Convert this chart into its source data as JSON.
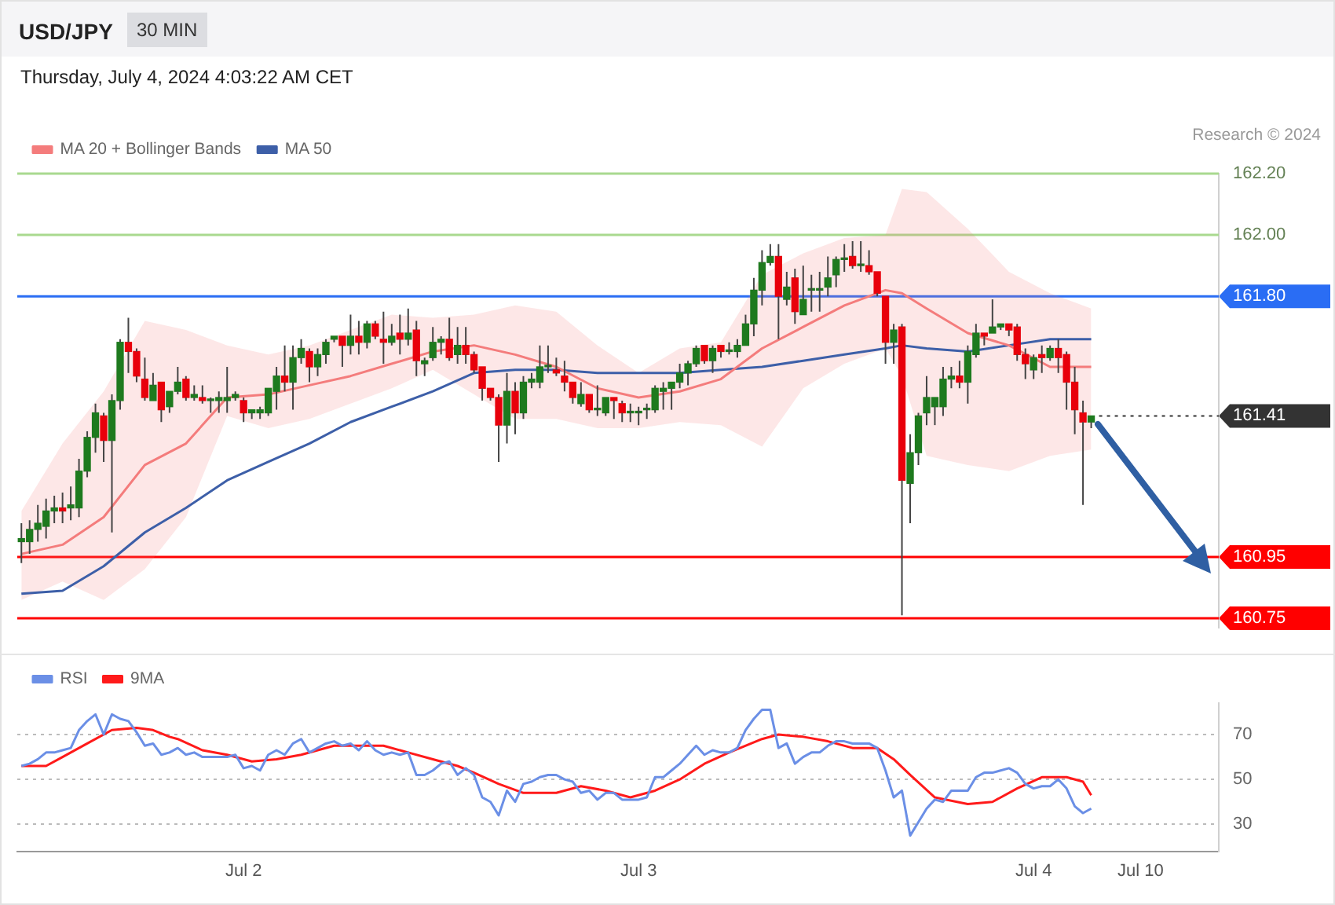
{
  "chart_data": [
    {
      "type": "candlestick",
      "title": "USD/JPY",
      "subtitle": "Thursday, July 4, 2024 4:03:22 AM CET",
      "annotations": [
        "30 MIN",
        "Research © 2024"
      ],
      "ohlc": [
        [
          161.0,
          161.06,
          160.93,
          161.01
        ],
        [
          161.0,
          161.07,
          160.96,
          161.04
        ],
        [
          161.04,
          161.12,
          161.0,
          161.06
        ],
        [
          161.05,
          161.14,
          161.01,
          161.1
        ],
        [
          161.1,
          161.15,
          161.06,
          161.11
        ],
        [
          161.11,
          161.16,
          161.06,
          161.1
        ],
        [
          161.11,
          161.18,
          161.07,
          161.12
        ],
        [
          161.11,
          161.27,
          161.08,
          161.23
        ],
        [
          161.23,
          161.36,
          161.21,
          161.34
        ],
        [
          161.34,
          161.45,
          161.29,
          161.42
        ],
        [
          161.41,
          161.42,
          161.26,
          161.33
        ],
        [
          161.33,
          161.48,
          161.03,
          161.46
        ],
        [
          161.46,
          161.66,
          161.43,
          161.65
        ],
        [
          161.65,
          161.73,
          161.55,
          161.62
        ],
        [
          161.62,
          161.63,
          161.52,
          161.54
        ],
        [
          161.53,
          161.6,
          161.46,
          161.47
        ],
        [
          161.46,
          161.55,
          161.46,
          161.51
        ],
        [
          161.52,
          161.52,
          161.39,
          161.43
        ],
        [
          161.44,
          161.49,
          161.42,
          161.49
        ],
        [
          161.49,
          161.57,
          161.48,
          161.52
        ],
        [
          161.53,
          161.54,
          161.46,
          161.47
        ],
        [
          161.47,
          161.51,
          161.46,
          161.48
        ],
        [
          161.47,
          161.51,
          161.45,
          161.46
        ],
        [
          161.46,
          161.47,
          161.42,
          161.46
        ],
        [
          161.46,
          161.49,
          161.42,
          161.47
        ],
        [
          161.46,
          161.57,
          161.42,
          161.47
        ],
        [
          161.47,
          161.49,
          161.46,
          161.48
        ],
        [
          161.46,
          161.47,
          161.39,
          161.42
        ],
        [
          161.42,
          161.43,
          161.4,
          161.43
        ],
        [
          161.42,
          161.44,
          161.4,
          161.43
        ],
        [
          161.42,
          161.5,
          161.41,
          161.5
        ],
        [
          161.49,
          161.57,
          161.43,
          161.54
        ],
        [
          161.54,
          161.64,
          161.49,
          161.52
        ],
        [
          161.52,
          161.64,
          161.43,
          161.6
        ],
        [
          161.6,
          161.66,
          161.58,
          161.63
        ],
        [
          161.62,
          161.63,
          161.52,
          161.57
        ],
        [
          161.57,
          161.63,
          161.54,
          161.61
        ],
        [
          161.61,
          161.66,
          161.58,
          161.65
        ],
        [
          161.66,
          161.67,
          161.65,
          161.67
        ],
        [
          161.67,
          161.67,
          161.57,
          161.64
        ],
        [
          161.64,
          161.74,
          161.61,
          161.67
        ],
        [
          161.67,
          161.72,
          161.61,
          161.65
        ],
        [
          161.65,
          161.72,
          161.63,
          161.71
        ],
        [
          161.71,
          161.72,
          161.66,
          161.67
        ],
        [
          161.66,
          161.75,
          161.58,
          161.65
        ],
        [
          161.65,
          161.71,
          161.64,
          161.67
        ],
        [
          161.68,
          161.74,
          161.61,
          161.66
        ],
        [
          161.66,
          161.76,
          161.64,
          161.68
        ],
        [
          161.69,
          161.72,
          161.54,
          161.59
        ],
        [
          161.58,
          161.6,
          161.54,
          161.59
        ],
        [
          161.6,
          161.7,
          161.59,
          161.65
        ],
        [
          161.65,
          161.67,
          161.61,
          161.66
        ],
        [
          161.66,
          161.73,
          161.59,
          161.6
        ],
        [
          161.61,
          161.7,
          161.58,
          161.64
        ],
        [
          161.64,
          161.7,
          161.58,
          161.61
        ],
        [
          161.61,
          161.62,
          161.55,
          161.56
        ],
        [
          161.57,
          161.57,
          161.46,
          161.5
        ],
        [
          161.5,
          161.5,
          161.46,
          161.47
        ],
        [
          161.47,
          161.48,
          161.26,
          161.38
        ],
        [
          161.38,
          161.55,
          161.32,
          161.49
        ],
        [
          161.49,
          161.52,
          161.35,
          161.42
        ],
        [
          161.42,
          161.54,
          161.4,
          161.52
        ],
        [
          161.52,
          161.55,
          161.5,
          161.53
        ],
        [
          161.52,
          161.64,
          161.5,
          161.57
        ],
        [
          161.57,
          161.64,
          161.55,
          161.57
        ],
        [
          161.56,
          161.6,
          161.54,
          161.55
        ],
        [
          161.54,
          161.59,
          161.49,
          161.52
        ],
        [
          161.52,
          161.52,
          161.45,
          161.47
        ],
        [
          161.45,
          161.52,
          161.44,
          161.48
        ],
        [
          161.48,
          161.48,
          161.42,
          161.43
        ],
        [
          161.43,
          161.51,
          161.41,
          161.43
        ],
        [
          161.42,
          161.47,
          161.41,
          161.47
        ],
        [
          161.47,
          161.47,
          161.4,
          161.46
        ],
        [
          161.45,
          161.46,
          161.39,
          161.42
        ],
        [
          161.42,
          161.45,
          161.39,
          161.42
        ],
        [
          161.42,
          161.44,
          161.38,
          161.42
        ],
        [
          161.43,
          161.45,
          161.4,
          161.43
        ],
        [
          161.43,
          161.51,
          161.42,
          161.5
        ],
        [
          161.49,
          161.52,
          161.43,
          161.5
        ],
        [
          161.5,
          161.52,
          161.43,
          161.52
        ],
        [
          161.52,
          161.58,
          161.5,
          161.55
        ],
        [
          161.55,
          161.59,
          161.51,
          161.58
        ],
        [
          161.58,
          161.64,
          161.57,
          161.63
        ],
        [
          161.64,
          161.64,
          161.58,
          161.59
        ],
        [
          161.59,
          161.64,
          161.55,
          161.63
        ],
        [
          161.64,
          161.64,
          161.6,
          161.62
        ],
        [
          161.62,
          161.65,
          161.61,
          161.62
        ],
        [
          161.62,
          161.66,
          161.6,
          161.64
        ],
        [
          161.64,
          161.74,
          161.64,
          161.71
        ],
        [
          161.71,
          161.86,
          161.67,
          161.82
        ],
        [
          161.82,
          161.95,
          161.77,
          161.91
        ],
        [
          161.91,
          161.97,
          161.9,
          161.93
        ],
        [
          161.93,
          161.97,
          161.66,
          161.8
        ],
        [
          161.79,
          161.88,
          161.77,
          161.83
        ],
        [
          161.86,
          161.89,
          161.71,
          161.75
        ],
        [
          161.74,
          161.9,
          161.74,
          161.79
        ],
        [
          161.82,
          161.87,
          161.75,
          161.82
        ],
        [
          161.82,
          161.88,
          161.75,
          161.82
        ],
        [
          161.83,
          161.93,
          161.8,
          161.86
        ],
        [
          161.87,
          161.93,
          161.83,
          161.92
        ],
        [
          161.92,
          161.97,
          161.88,
          161.92
        ],
        [
          161.93,
          161.98,
          161.89,
          161.9
        ],
        [
          161.9,
          161.98,
          161.88,
          161.9
        ],
        [
          161.9,
          161.95,
          161.87,
          161.88
        ],
        [
          161.88,
          161.88,
          161.8,
          161.81
        ],
        [
          161.8,
          161.8,
          161.58,
          161.65
        ],
        [
          161.65,
          161.71,
          161.58,
          161.69
        ],
        [
          161.7,
          161.71,
          160.76,
          161.2
        ],
        [
          161.19,
          161.35,
          161.06,
          161.29
        ],
        [
          161.29,
          161.42,
          161.25,
          161.41
        ],
        [
          161.42,
          161.54,
          161.38,
          161.47
        ],
        [
          161.44,
          161.47,
          161.38,
          161.47
        ],
        [
          161.44,
          161.57,
          161.41,
          161.53
        ],
        [
          161.53,
          161.57,
          161.5,
          161.54
        ],
        [
          161.54,
          161.59,
          161.5,
          161.52
        ],
        [
          161.52,
          161.64,
          161.45,
          161.62
        ],
        [
          161.61,
          161.71,
          161.6,
          161.68
        ],
        [
          161.68,
          161.68,
          161.64,
          161.67
        ],
        [
          161.68,
          161.79,
          161.68,
          161.7
        ],
        [
          161.7,
          161.71,
          161.69,
          161.71
        ],
        [
          161.71,
          161.71,
          161.67,
          161.69
        ],
        [
          161.7,
          161.71,
          161.59,
          161.61
        ],
        [
          161.61,
          161.63,
          161.53,
          161.58
        ],
        [
          161.56,
          161.61,
          161.53,
          161.6
        ],
        [
          161.61,
          161.64,
          161.55,
          161.6
        ],
        [
          161.6,
          161.64,
          161.59,
          161.63
        ],
        [
          161.63,
          161.66,
          161.55,
          161.6
        ],
        [
          161.61,
          161.62,
          161.43,
          161.52
        ],
        [
          161.52,
          161.57,
          161.35,
          161.43
        ],
        [
          161.42,
          161.46,
          161.12,
          161.39
        ],
        [
          161.39,
          161.41,
          161.37,
          161.41
        ],
        null,
        null,
        null,
        null,
        null,
        null,
        null,
        null,
        null,
        null,
        null,
        null,
        null,
        null,
        null
      ],
      "colors": [
        "#1e7a1e",
        "#1e7a1e",
        "#1e7a1e",
        "#1e7a1e",
        "#1e7a1e",
        "#e8000b",
        "#1e7a1e",
        "#1e7a1e",
        "#1e7a1e",
        "#1e7a1e",
        "#e8000b",
        "#1e7a1e",
        "#1e7a1e",
        "#e8000b",
        "#e8000b",
        "#e8000b",
        "#1e7a1e",
        "#e8000b",
        "#1e7a1e",
        "#1e7a1e",
        "#e8000b",
        "#1e7a1e",
        "#e8000b",
        "#1e7a1e",
        "#1e7a1e",
        "#1e7a1e",
        "#1e7a1e",
        "#e8000b",
        "#1e7a1e",
        "#1e7a1e",
        "#1e7a1e",
        "#1e7a1e",
        "#e8000b",
        "#1e7a1e",
        "#1e7a1e",
        "#e8000b",
        "#1e7a1e",
        "#1e7a1e",
        "#1e7a1e",
        "#e8000b",
        "#1e7a1e",
        "#e8000b",
        "#1e7a1e",
        "#e8000b",
        "#e8000b",
        "#1e7a1e",
        "#e8000b",
        "#1e7a1e",
        "#e8000b",
        "#1e7a1e",
        "#1e7a1e",
        "#1e7a1e",
        "#e8000b",
        "#1e7a1e",
        "#e8000b",
        "#e8000b",
        "#e8000b",
        "#e8000b",
        "#e8000b",
        "#1e7a1e",
        "#e8000b",
        "#1e7a1e",
        "#1e7a1e",
        "#1e7a1e",
        "#1e7a1e",
        "#e8000b",
        "#e8000b",
        "#e8000b",
        "#1e7a1e",
        "#e8000b",
        "#1e7a1e",
        "#1e7a1e",
        "#e8000b",
        "#e8000b",
        "#1e7a1e",
        "#1e7a1e",
        "#1e7a1e",
        "#1e7a1e",
        "#1e7a1e",
        "#1e7a1e",
        "#1e7a1e",
        "#1e7a1e",
        "#1e7a1e",
        "#e8000b",
        "#1e7a1e",
        "#e8000b",
        "#1e7a1e",
        "#1e7a1e",
        "#1e7a1e",
        "#1e7a1e",
        "#1e7a1e",
        "#1e7a1e",
        "#e8000b",
        "#1e7a1e",
        "#e8000b",
        "#1e7a1e",
        "#1e7a1e",
        "#1e7a1e",
        "#1e7a1e",
        "#1e7a1e",
        "#1e7a1e",
        "#e8000b",
        "#1e7a1e",
        "#e8000b",
        "#e8000b",
        "#e8000b",
        "#1e7a1e",
        "#e8000b",
        "#1e7a1e",
        "#1e7a1e",
        "#1e7a1e",
        "#1e7a1e",
        "#1e7a1e",
        "#1e7a1e",
        "#e8000b",
        "#1e7a1e",
        "#1e7a1e",
        "#e8000b",
        "#1e7a1e",
        "#1e7a1e",
        "#e8000b",
        "#e8000b",
        "#e8000b",
        "#1e7a1e",
        "#e8000b",
        "#1e7a1e",
        "#e8000b",
        "#e8000b",
        "#e8000b",
        "#e8000b",
        "#1e7a1e",
        null,
        null,
        null,
        null,
        null,
        null,
        null,
        null,
        null,
        null,
        null,
        null,
        null,
        null,
        null
      ],
      "series": [
        {
          "name": "MA 20 + Bollinger Bands",
          "type": "line",
          "color": "#f47c7c",
          "values": [
            160.96,
            null,
            null,
            null,
            null,
            160.99,
            null,
            null,
            null,
            null,
            161.08,
            null,
            null,
            null,
            null,
            161.25,
            null,
            null,
            null,
            null,
            161.32,
            null,
            null,
            null,
            null,
            161.47,
            null,
            null,
            null,
            null,
            161.48,
            null,
            null,
            null,
            null,
            161.51,
            null,
            null,
            null,
            null,
            161.54,
            null,
            null,
            null,
            null,
            161.58,
            null,
            null,
            null,
            null,
            161.62,
            null,
            null,
            null,
            null,
            161.64,
            null,
            null,
            null,
            null,
            161.61,
            null,
            null,
            null,
            null,
            161.57,
            null,
            null,
            null,
            null,
            161.5,
            null,
            null,
            null,
            null,
            161.47,
            null,
            null,
            null,
            null,
            161.49,
            null,
            null,
            null,
            null,
            161.53,
            null,
            null,
            null,
            null,
            161.63,
            null,
            null,
            null,
            null,
            161.7,
            null,
            null,
            null,
            null,
            161.77,
            null,
            null,
            null,
            null,
            161.82,
            null,
            161.81,
            null,
            null,
            161.76,
            null,
            null,
            null,
            null,
            161.68,
            null,
            null,
            null,
            null,
            161.64,
            null,
            null,
            null,
            null,
            161.57,
            null,
            null,
            null,
            null,
            161.57,
            null,
            null,
            null,
            null,
            null,
            null,
            null,
            null,
            null,
            null,
            null,
            null,
            null,
            null,
            null
          ],
          "upper": [
            161.1,
            null,
            null,
            null,
            null,
            161.32,
            null,
            null,
            null,
            null,
            161.49,
            null,
            null,
            null,
            null,
            161.72,
            null,
            null,
            null,
            null,
            161.69,
            null,
            null,
            null,
            null,
            161.64,
            null,
            null,
            null,
            null,
            161.61,
            null,
            null,
            null,
            null,
            161.64,
            null,
            null,
            null,
            null,
            161.69,
            null,
            null,
            null,
            null,
            161.74,
            null,
            null,
            null,
            null,
            161.73,
            null,
            null,
            null,
            null,
            161.74,
            null,
            null,
            null,
            null,
            161.77,
            null,
            null,
            null,
            null,
            161.75,
            null,
            null,
            null,
            null,
            161.64,
            null,
            null,
            null,
            null,
            161.55,
            null,
            null,
            null,
            null,
            161.63,
            null,
            null,
            null,
            null,
            161.65,
            null,
            null,
            null,
            null,
            161.87,
            null,
            null,
            null,
            null,
            161.94,
            null,
            null,
            null,
            null,
            161.99,
            null,
            null,
            null,
            null,
            162.0,
            null,
            162.15,
            null,
            null,
            162.14,
            null,
            null,
            null,
            null,
            162.02,
            null,
            null,
            null,
            null,
            161.88,
            null,
            null,
            null,
            null,
            161.81,
            null,
            null,
            null,
            null,
            161.76,
            null,
            null,
            null,
            null,
            null,
            null,
            null,
            null,
            null,
            null,
            null,
            null,
            null,
            null,
            null
          ],
          "lower": [
            160.81,
            null,
            null,
            null,
            null,
            160.87,
            null,
            null,
            null,
            null,
            160.81,
            null,
            null,
            null,
            null,
            160.91,
            null,
            null,
            null,
            null,
            161.08,
            null,
            null,
            null,
            null,
            161.41,
            null,
            null,
            null,
            null,
            161.37,
            null,
            null,
            null,
            null,
            161.4,
            null,
            null,
            null,
            null,
            161.45,
            null,
            null,
            null,
            null,
            161.5,
            null,
            null,
            null,
            null,
            161.56,
            null,
            null,
            null,
            null,
            161.48,
            null,
            null,
            null,
            null,
            161.4,
            null,
            null,
            null,
            null,
            161.4,
            null,
            null,
            null,
            null,
            161.37,
            null,
            null,
            null,
            null,
            161.37,
            null,
            null,
            null,
            null,
            161.39,
            null,
            null,
            null,
            null,
            161.38,
            null,
            null,
            null,
            null,
            161.31,
            null,
            null,
            null,
            null,
            161.5,
            null,
            null,
            null,
            null,
            161.58,
            null,
            null,
            null,
            null,
            161.63,
            null,
            161.54,
            null,
            null,
            161.28,
            null,
            null,
            null,
            null,
            161.25,
            null,
            null,
            null,
            null,
            161.23,
            null,
            null,
            null,
            null,
            161.28,
            null,
            null,
            null,
            null,
            161.3,
            null,
            null,
            null,
            null,
            null,
            null,
            null,
            null,
            null,
            null,
            null,
            null,
            null,
            null,
            null
          ]
        },
        {
          "name": "MA 50",
          "type": "line",
          "color": "#3d5fa8",
          "values": [
            160.83,
            null,
            null,
            null,
            null,
            160.84,
            null,
            null,
            null,
            null,
            160.92,
            null,
            null,
            null,
            null,
            161.03,
            null,
            null,
            null,
            null,
            161.11,
            null,
            null,
            null,
            null,
            161.2,
            null,
            null,
            null,
            null,
            161.26,
            null,
            null,
            null,
            null,
            161.32,
            null,
            null,
            null,
            null,
            161.39,
            null,
            null,
            null,
            null,
            161.44,
            null,
            null,
            null,
            null,
            161.49,
            null,
            null,
            null,
            null,
            161.55,
            null,
            null,
            null,
            null,
            161.56,
            null,
            null,
            null,
            null,
            161.56,
            null,
            null,
            null,
            null,
            161.55,
            null,
            null,
            null,
            null,
            161.55,
            null,
            null,
            null,
            null,
            161.55,
            null,
            null,
            null,
            null,
            161.56,
            null,
            null,
            null,
            null,
            161.57,
            null,
            null,
            null,
            null,
            161.59,
            null,
            null,
            null,
            null,
            161.61,
            null,
            null,
            null,
            null,
            161.63,
            null,
            161.64,
            null,
            null,
            161.63,
            null,
            null,
            null,
            null,
            161.62,
            null,
            null,
            null,
            null,
            161.64,
            null,
            null,
            null,
            null,
            161.66,
            null,
            null,
            null,
            null,
            161.66,
            null,
            null,
            null,
            null,
            null,
            null,
            null,
            null,
            null,
            null,
            null,
            null,
            null,
            null,
            null
          ]
        }
      ],
      "ref_lines": [
        {
          "axis": "y",
          "value": 162.2,
          "color": "#a9d98f",
          "line_style": "solid"
        },
        {
          "axis": "y",
          "value": 162,
          "color": "#a9d98f",
          "line_style": "solid"
        },
        {
          "axis": "y",
          "value": 161.8,
          "color": "#2a6df4",
          "line_style": "solid"
        },
        {
          "axis": "y",
          "value": 161.41,
          "color": "#333333",
          "line_style": "dotted"
        },
        {
          "axis": "y",
          "value": 160.95,
          "color": "#ff0000",
          "line_style": "solid"
        },
        {
          "axis": "y",
          "value": 160.75,
          "color": "#ff0000",
          "line_style": "solid"
        }
      ],
      "ylim": [
        160.72,
        162.2
      ],
      "yticks": [
        {
          "value": 160.75,
          "label": "160.75"
        },
        {
          "value": 160.95,
          "label": "160.95"
        },
        {
          "value": 161.41,
          "label": "161.41"
        },
        {
          "value": 161.8,
          "label": "161.80"
        },
        {
          "value": 162,
          "label": "162.00"
        },
        {
          "value": 162.2,
          "label": "162.20"
        }
      ],
      "tick_labels": "y",
      "legend": "top left"
    },
    {
      "type": "line",
      "legend": "top left",
      "grid": "y",
      "categories": [
        null,
        null,
        null,
        null,
        null,
        null,
        null,
        null,
        null,
        null,
        null,
        null,
        null,
        null,
        null,
        null,
        null,
        null,
        null,
        null,
        null,
        null,
        null,
        null,
        null,
        null,
        null,
        "Jul 2",
        null,
        null,
        null,
        null,
        null,
        null,
        null,
        null,
        null,
        null,
        null,
        null,
        null,
        null,
        null,
        null,
        null,
        null,
        null,
        null,
        null,
        null,
        null,
        null,
        null,
        null,
        null,
        null,
        null,
        null,
        null,
        null,
        null,
        null,
        null,
        null,
        null,
        null,
        null,
        null,
        null,
        null,
        null,
        null,
        null,
        null,
        null,
        "Jul 3",
        null,
        null,
        null,
        null,
        null,
        null,
        null,
        null,
        null,
        null,
        null,
        null,
        null,
        null,
        null,
        null,
        null,
        null,
        null,
        null,
        null,
        null,
        null,
        null,
        null,
        null,
        null,
        null,
        null,
        null,
        null,
        null,
        null,
        null,
        null,
        null,
        null,
        null,
        null,
        null,
        null,
        null,
        null,
        null,
        null,
        null,
        null,
        "Jul 4",
        null,
        null,
        null,
        null,
        null,
        null,
        null,
        null,
        null,
        null,
        null,
        null,
        "Jul 10",
        null,
        null,
        null,
        null,
        null,
        null,
        null,
        null,
        null
      ],
      "ylim": [
        18,
        84
      ],
      "yticks": [
        30,
        50,
        70
      ],
      "series": [
        {
          "name": "RSI",
          "color": "#6b8fe6",
          "values": [
            56,
            57,
            59,
            62,
            62,
            63,
            64,
            72,
            76,
            79,
            70,
            79,
            77,
            76,
            71,
            65,
            66,
            61,
            62,
            64,
            61,
            62,
            60,
            60,
            60,
            60,
            61,
            55,
            56,
            54,
            61,
            63,
            61,
            66,
            68,
            62,
            64,
            66,
            67,
            65,
            66,
            63,
            67,
            63,
            61,
            62,
            61,
            62,
            52,
            52,
            54,
            57,
            58,
            52,
            55,
            52,
            42,
            40,
            34,
            45,
            40,
            48,
            49,
            51,
            52,
            52,
            50,
            49,
            44,
            45,
            41,
            44,
            44,
            41,
            41,
            41,
            42,
            51,
            51,
            54,
            57,
            61,
            65,
            61,
            63,
            62,
            62,
            64,
            72,
            77,
            81,
            81,
            64,
            66,
            57,
            60,
            62,
            62,
            65,
            67,
            67,
            66,
            66,
            66,
            64,
            54,
            42,
            45,
            25,
            31,
            37,
            41,
            40,
            45,
            45,
            45,
            51,
            53,
            53,
            54,
            55,
            53,
            48,
            46,
            47,
            47,
            50,
            46,
            38,
            35,
            37,
            null,
            null,
            null,
            null,
            null,
            null,
            null,
            null,
            null,
            null,
            null,
            null,
            null,
            null,
            null
          ]
        },
        {
          "name": "9MA",
          "color": "#ff1a1a",
          "values": [
            56,
            null,
            null,
            56,
            null,
            60,
            null,
            null,
            66,
            null,
            null,
            72,
            null,
            null,
            73,
            null,
            72,
            null,
            69,
            68,
            null,
            null,
            63,
            null,
            null,
            61,
            null,
            null,
            58,
            null,
            null,
            59,
            null,
            null,
            61,
            null,
            null,
            null,
            65,
            null,
            null,
            65,
            null,
            null,
            65,
            null,
            null,
            62,
            null,
            null,
            59,
            null,
            null,
            56,
            null,
            53,
            null,
            null,
            48,
            null,
            null,
            44,
            null,
            null,
            null,
            44,
            null,
            null,
            47,
            null,
            null,
            45,
            null,
            null,
            42,
            null,
            null,
            45,
            null,
            null,
            50,
            null,
            null,
            57,
            null,
            null,
            62,
            null,
            null,
            null,
            68,
            null,
            70,
            null,
            null,
            69,
            null,
            null,
            67,
            null,
            null,
            64,
            null,
            null,
            64,
            null,
            59,
            null,
            52,
            null,
            null,
            42,
            null,
            null,
            null,
            39,
            null,
            null,
            40,
            null,
            null,
            46,
            null,
            null,
            51,
            null,
            null,
            51,
            null,
            49,
            43,
            null,
            null,
            null,
            null,
            null,
            null,
            null,
            null,
            null,
            null,
            null,
            null,
            null,
            null,
            null
          ]
        }
      ]
    }
  ]
}
